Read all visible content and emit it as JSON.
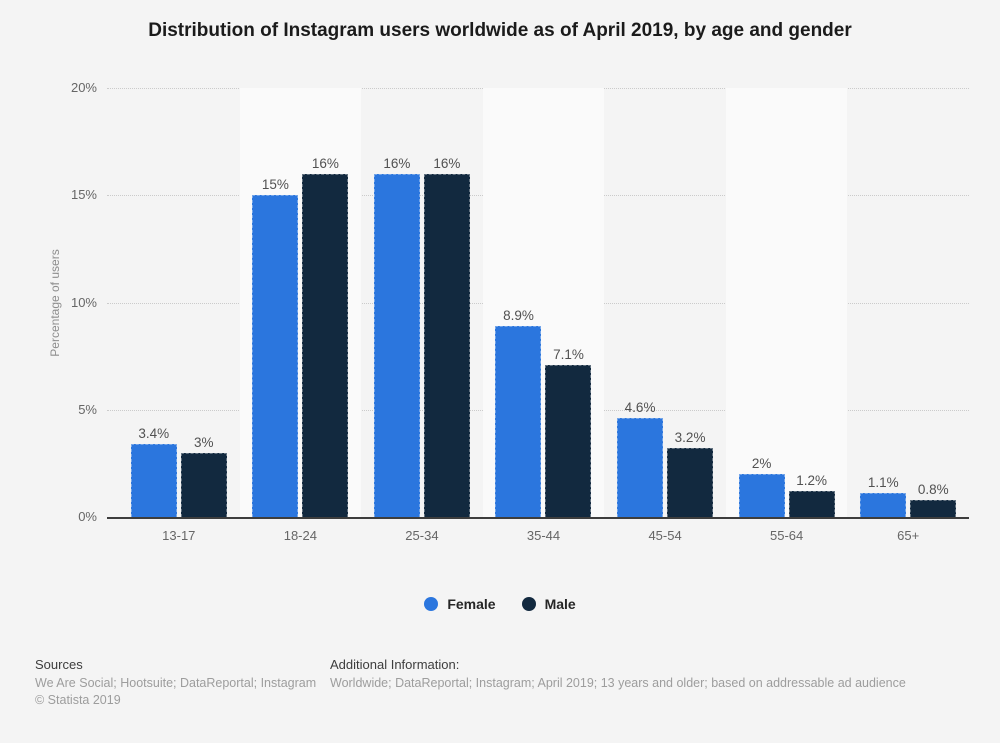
{
  "title": "Distribution of Instagram users worldwide as of April 2019, by age and gender",
  "chart_data": {
    "type": "bar",
    "categories": [
      "13-17",
      "18-24",
      "25-34",
      "35-44",
      "45-54",
      "55-64",
      "65+"
    ],
    "series": [
      {
        "name": "Female",
        "color": "#2B76DE",
        "values": [
          3.4,
          15,
          16,
          8.9,
          4.6,
          2,
          1.1
        ],
        "labels": [
          "3.4%",
          "15%",
          "16%",
          "8.9%",
          "4.6%",
          "2%",
          "1.1%"
        ]
      },
      {
        "name": "Male",
        "color": "#12293F",
        "values": [
          3,
          16,
          16,
          7.1,
          3.2,
          1.2,
          0.8
        ],
        "labels": [
          "3%",
          "16%",
          "16%",
          "7.1%",
          "3.2%",
          "1.2%",
          "0.8%"
        ]
      }
    ],
    "xlabel": "",
    "ylabel": "Percentage of users",
    "y_ticks": [
      "0%",
      "5%",
      "10%",
      "15%",
      "20%"
    ],
    "ylim": [
      0,
      20
    ],
    "grid": "horizontal dotted",
    "legend_position": "bottom",
    "plot_band_alternate": true
  },
  "theme": {
    "background": "#f4f4f4",
    "band": "#fafafa",
    "female": "#2B76DE",
    "male": "#12293F",
    "grid": "#cbcbcb",
    "axis": "#3d3d3d"
  },
  "footer": {
    "sources_heading": "Sources",
    "sources_line": "We Are Social; Hootsuite; DataReportal; Instagram",
    "copyright": "© Statista 2019",
    "additional_heading": "Additional Information:",
    "additional_line": "Worldwide; DataReportal; Instagram; April 2019; 13 years and older; based on addressable ad audience"
  }
}
